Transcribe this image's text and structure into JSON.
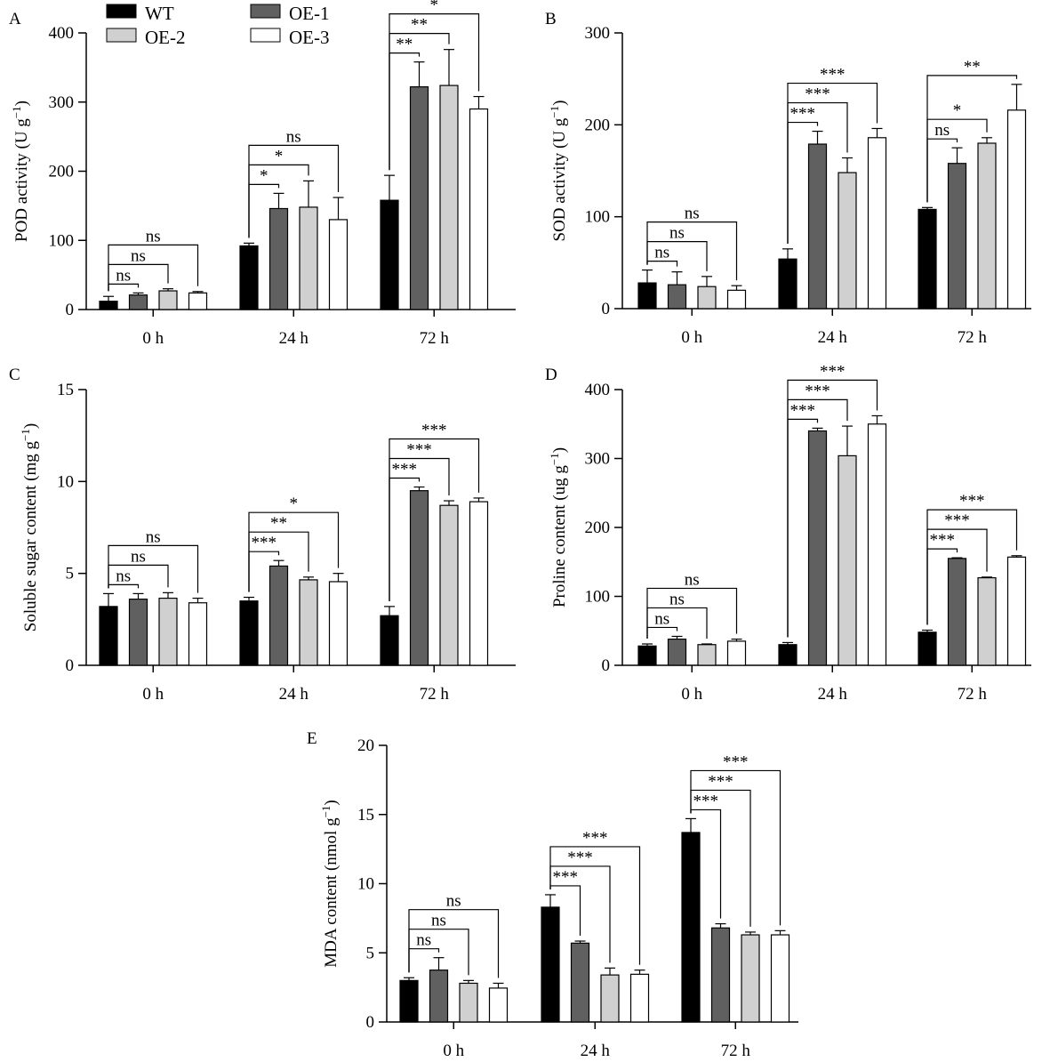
{
  "legend": [
    {
      "name": "WT",
      "color": "#000000"
    },
    {
      "name": "OE-1",
      "color": "#606060"
    },
    {
      "name": "OE-2",
      "color": "#d0d0d0"
    },
    {
      "name": "OE-3",
      "color": "#ffffff"
    }
  ],
  "chart_data": [
    {
      "panel": "A",
      "type": "bar",
      "ylabel": "POD activity (U g",
      "ylabel_sup": "−1",
      "ylim": [
        0,
        400
      ],
      "yticks": [
        0,
        100,
        200,
        300,
        400
      ],
      "categories": [
        "0 h",
        "24 h",
        "72 h"
      ],
      "series": [
        {
          "name": "WT",
          "values": [
            12,
            92,
            158
          ],
          "errors": [
            7,
            4,
            36
          ]
        },
        {
          "name": "OE-1",
          "values": [
            21,
            146,
            322
          ],
          "errors": [
            3,
            22,
            36
          ]
        },
        {
          "name": "OE-2",
          "values": [
            27,
            148,
            324
          ],
          "errors": [
            3,
            38,
            52
          ]
        },
        {
          "name": "OE-3",
          "values": [
            24,
            130,
            290
          ],
          "errors": [
            2,
            32,
            18
          ]
        }
      ],
      "significance": [
        {
          "group": 0,
          "target": 1,
          "label": "ns"
        },
        {
          "group": 0,
          "target": 2,
          "label": "ns"
        },
        {
          "group": 0,
          "target": 3,
          "label": "ns"
        },
        {
          "group": 1,
          "target": 1,
          "label": "*"
        },
        {
          "group": 1,
          "target": 2,
          "label": "*"
        },
        {
          "group": 1,
          "target": 3,
          "label": "ns"
        },
        {
          "group": 2,
          "target": 1,
          "label": "**"
        },
        {
          "group": 2,
          "target": 2,
          "label": "**"
        },
        {
          "group": 2,
          "target": 3,
          "label": "*"
        }
      ]
    },
    {
      "panel": "B",
      "type": "bar",
      "ylabel": "SOD activity (U g",
      "ylabel_sup": "−1",
      "ylim": [
        0,
        300
      ],
      "yticks": [
        0,
        100,
        200,
        300
      ],
      "categories": [
        "0 h",
        "24 h",
        "72 h"
      ],
      "series": [
        {
          "name": "WT",
          "values": [
            28,
            54,
            108
          ],
          "errors": [
            14,
            11,
            2
          ]
        },
        {
          "name": "OE-1",
          "values": [
            26,
            179,
            158
          ],
          "errors": [
            14,
            14,
            17
          ]
        },
        {
          "name": "OE-2",
          "values": [
            24,
            148,
            180
          ],
          "errors": [
            11,
            16,
            6
          ]
        },
        {
          "name": "OE-3",
          "values": [
            20,
            186,
            216
          ],
          "errors": [
            5,
            10,
            28
          ]
        }
      ],
      "significance": [
        {
          "group": 0,
          "target": 1,
          "label": "ns"
        },
        {
          "group": 0,
          "target": 2,
          "label": "ns"
        },
        {
          "group": 0,
          "target": 3,
          "label": "ns"
        },
        {
          "group": 1,
          "target": 1,
          "label": "***"
        },
        {
          "group": 1,
          "target": 2,
          "label": "***"
        },
        {
          "group": 1,
          "target": 3,
          "label": "***"
        },
        {
          "group": 2,
          "target": 1,
          "label": "ns"
        },
        {
          "group": 2,
          "target": 2,
          "label": "*"
        },
        {
          "group": 2,
          "target": 3,
          "label": "**"
        }
      ]
    },
    {
      "panel": "C",
      "type": "bar",
      "ylabel": "Soluble sugar content (mg g",
      "ylabel_sup": "−1",
      "ylim": [
        0,
        15
      ],
      "yticks": [
        0,
        5,
        10,
        15
      ],
      "categories": [
        "0 h",
        "24 h",
        "72 h"
      ],
      "series": [
        {
          "name": "WT",
          "values": [
            3.2,
            3.5,
            2.7
          ],
          "errors": [
            0.7,
            0.2,
            0.5
          ]
        },
        {
          "name": "OE-1",
          "values": [
            3.6,
            5.4,
            9.5
          ],
          "errors": [
            0.3,
            0.3,
            0.2
          ]
        },
        {
          "name": "OE-2",
          "values": [
            3.65,
            4.65,
            8.7
          ],
          "errors": [
            0.3,
            0.15,
            0.25
          ]
        },
        {
          "name": "OE-3",
          "values": [
            3.4,
            4.55,
            8.9
          ],
          "errors": [
            0.25,
            0.45,
            0.2
          ]
        }
      ],
      "significance": [
        {
          "group": 0,
          "target": 1,
          "label": "ns"
        },
        {
          "group": 0,
          "target": 2,
          "label": "ns"
        },
        {
          "group": 0,
          "target": 3,
          "label": "ns"
        },
        {
          "group": 1,
          "target": 1,
          "label": "***"
        },
        {
          "group": 1,
          "target": 2,
          "label": "**"
        },
        {
          "group": 1,
          "target": 3,
          "label": "*"
        },
        {
          "group": 2,
          "target": 1,
          "label": "***"
        },
        {
          "group": 2,
          "target": 2,
          "label": "***"
        },
        {
          "group": 2,
          "target": 3,
          "label": "***"
        }
      ]
    },
    {
      "panel": "D",
      "type": "bar",
      "ylabel": "Proline content (ug g",
      "ylabel_sup": "−1",
      "ylim": [
        0,
        400
      ],
      "yticks": [
        0,
        100,
        200,
        300,
        400
      ],
      "categories": [
        "0 h",
        "24 h",
        "72 h"
      ],
      "series": [
        {
          "name": "WT",
          "values": [
            28,
            30,
            48
          ],
          "errors": [
            3,
            3,
            3
          ]
        },
        {
          "name": "OE-1",
          "values": [
            38,
            340,
            155
          ],
          "errors": [
            4,
            4,
            1
          ]
        },
        {
          "name": "OE-2",
          "values": [
            30,
            304,
            127
          ],
          "errors": [
            1,
            43,
            1
          ]
        },
        {
          "name": "OE-3",
          "values": [
            35,
            350,
            157
          ],
          "errors": [
            3,
            12,
            2
          ]
        }
      ],
      "significance": [
        {
          "group": 0,
          "target": 1,
          "label": "ns"
        },
        {
          "group": 0,
          "target": 2,
          "label": "ns"
        },
        {
          "group": 0,
          "target": 3,
          "label": "ns"
        },
        {
          "group": 1,
          "target": 1,
          "label": "***"
        },
        {
          "group": 1,
          "target": 2,
          "label": "***"
        },
        {
          "group": 1,
          "target": 3,
          "label": "***"
        },
        {
          "group": 2,
          "target": 1,
          "label": "***"
        },
        {
          "group": 2,
          "target": 2,
          "label": "***"
        },
        {
          "group": 2,
          "target": 3,
          "label": "***"
        }
      ]
    },
    {
      "panel": "E",
      "type": "bar",
      "ylabel": "MDA content (nmol g",
      "ylabel_sup": "−1",
      "ylim": [
        0,
        20
      ],
      "yticks": [
        0,
        5,
        10,
        15,
        20
      ],
      "categories": [
        "0 h",
        "24 h",
        "72 h"
      ],
      "series": [
        {
          "name": "WT",
          "values": [
            3.0,
            8.3,
            13.7
          ],
          "errors": [
            0.2,
            0.9,
            1.0
          ]
        },
        {
          "name": "OE-1",
          "values": [
            3.75,
            5.7,
            6.8
          ],
          "errors": [
            0.9,
            0.15,
            0.3
          ]
        },
        {
          "name": "OE-2",
          "values": [
            2.8,
            3.4,
            6.3
          ],
          "errors": [
            0.2,
            0.5,
            0.2
          ]
        },
        {
          "name": "OE-3",
          "values": [
            2.45,
            3.45,
            6.3
          ],
          "errors": [
            0.35,
            0.3,
            0.3
          ]
        }
      ],
      "significance": [
        {
          "group": 0,
          "target": 1,
          "label": "ns"
        },
        {
          "group": 0,
          "target": 2,
          "label": "ns"
        },
        {
          "group": 0,
          "target": 3,
          "label": "ns"
        },
        {
          "group": 1,
          "target": 1,
          "label": "***"
        },
        {
          "group": 1,
          "target": 2,
          "label": "***"
        },
        {
          "group": 1,
          "target": 3,
          "label": "***"
        },
        {
          "group": 2,
          "target": 1,
          "label": "***"
        },
        {
          "group": 2,
          "target": 2,
          "label": "***"
        },
        {
          "group": 2,
          "target": 3,
          "label": "***"
        }
      ]
    }
  ]
}
